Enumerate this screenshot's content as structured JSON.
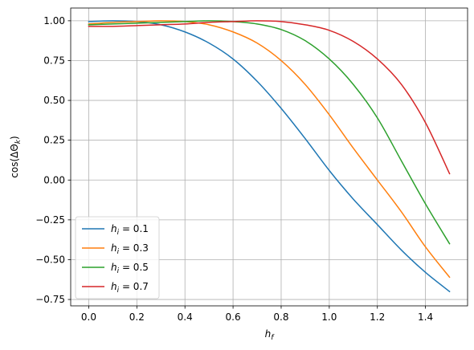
{
  "chart_data": {
    "type": "line",
    "title": "",
    "xlabel": "h_f",
    "ylabel": "cos(ΔΘ_k)",
    "xlim": [
      -0.075,
      1.575
    ],
    "ylim": [
      -0.79,
      1.08
    ],
    "xticks": [
      0.0,
      0.2,
      0.4,
      0.6,
      0.8,
      1.0,
      1.2,
      1.4
    ],
    "xtick_labels": [
      "0.0",
      "0.2",
      "0.4",
      "0.6",
      "0.8",
      "1.0",
      "1.2",
      "1.4"
    ],
    "yticks": [
      -0.75,
      -0.5,
      -0.25,
      0.0,
      0.25,
      0.5,
      0.75,
      1.0
    ],
    "ytick_labels": [
      "−0.75",
      "−0.50",
      "−0.25",
      "0.00",
      "0.25",
      "0.50",
      "0.75",
      "1.00"
    ],
    "grid": true,
    "legend_position": "lower-left",
    "series": [
      {
        "name": "h_i = 0.1",
        "legend_value": "0.1",
        "color": "#1f77b4",
        "x": [
          0.0,
          0.1,
          0.2,
          0.3,
          0.4,
          0.5,
          0.6,
          0.7,
          0.8,
          0.9,
          1.0,
          1.1,
          1.2,
          1.3,
          1.4,
          1.5
        ],
        "y": [
          0.995,
          1.0,
          0.995,
          0.975,
          0.93,
          0.86,
          0.76,
          0.62,
          0.45,
          0.26,
          0.06,
          -0.12,
          -0.28,
          -0.44,
          -0.58,
          -0.7
        ]
      },
      {
        "name": "h_i = 0.3",
        "legend_value": "0.3",
        "color": "#ff7f0e",
        "x": [
          0.0,
          0.1,
          0.2,
          0.3,
          0.4,
          0.5,
          0.6,
          0.7,
          0.8,
          0.9,
          1.0,
          1.1,
          1.2,
          1.3,
          1.4,
          1.5
        ],
        "y": [
          0.98,
          0.99,
          0.995,
          1.0,
          0.995,
          0.975,
          0.93,
          0.86,
          0.75,
          0.6,
          0.41,
          0.2,
          0.0,
          -0.2,
          -0.42,
          -0.61
        ]
      },
      {
        "name": "h_i = 0.5",
        "legend_value": "0.5",
        "color": "#2ca02c",
        "x": [
          0.0,
          0.1,
          0.2,
          0.3,
          0.4,
          0.5,
          0.6,
          0.7,
          0.8,
          0.9,
          1.0,
          1.1,
          1.2,
          1.3,
          1.4,
          1.5
        ],
        "y": [
          0.975,
          0.98,
          0.985,
          0.99,
          0.995,
          1.0,
          0.995,
          0.98,
          0.945,
          0.875,
          0.76,
          0.6,
          0.39,
          0.12,
          -0.15,
          -0.4
        ]
      },
      {
        "name": "h_i = 0.7",
        "legend_value": "0.7",
        "color": "#d62728",
        "x": [
          0.0,
          0.1,
          0.2,
          0.3,
          0.4,
          0.5,
          0.6,
          0.7,
          0.8,
          0.9,
          1.0,
          1.1,
          1.2,
          1.3,
          1.4,
          1.5
        ],
        "y": [
          0.965,
          0.965,
          0.97,
          0.975,
          0.98,
          0.99,
          0.995,
          1.0,
          0.995,
          0.975,
          0.94,
          0.87,
          0.76,
          0.6,
          0.36,
          0.04
        ]
      }
    ]
  }
}
